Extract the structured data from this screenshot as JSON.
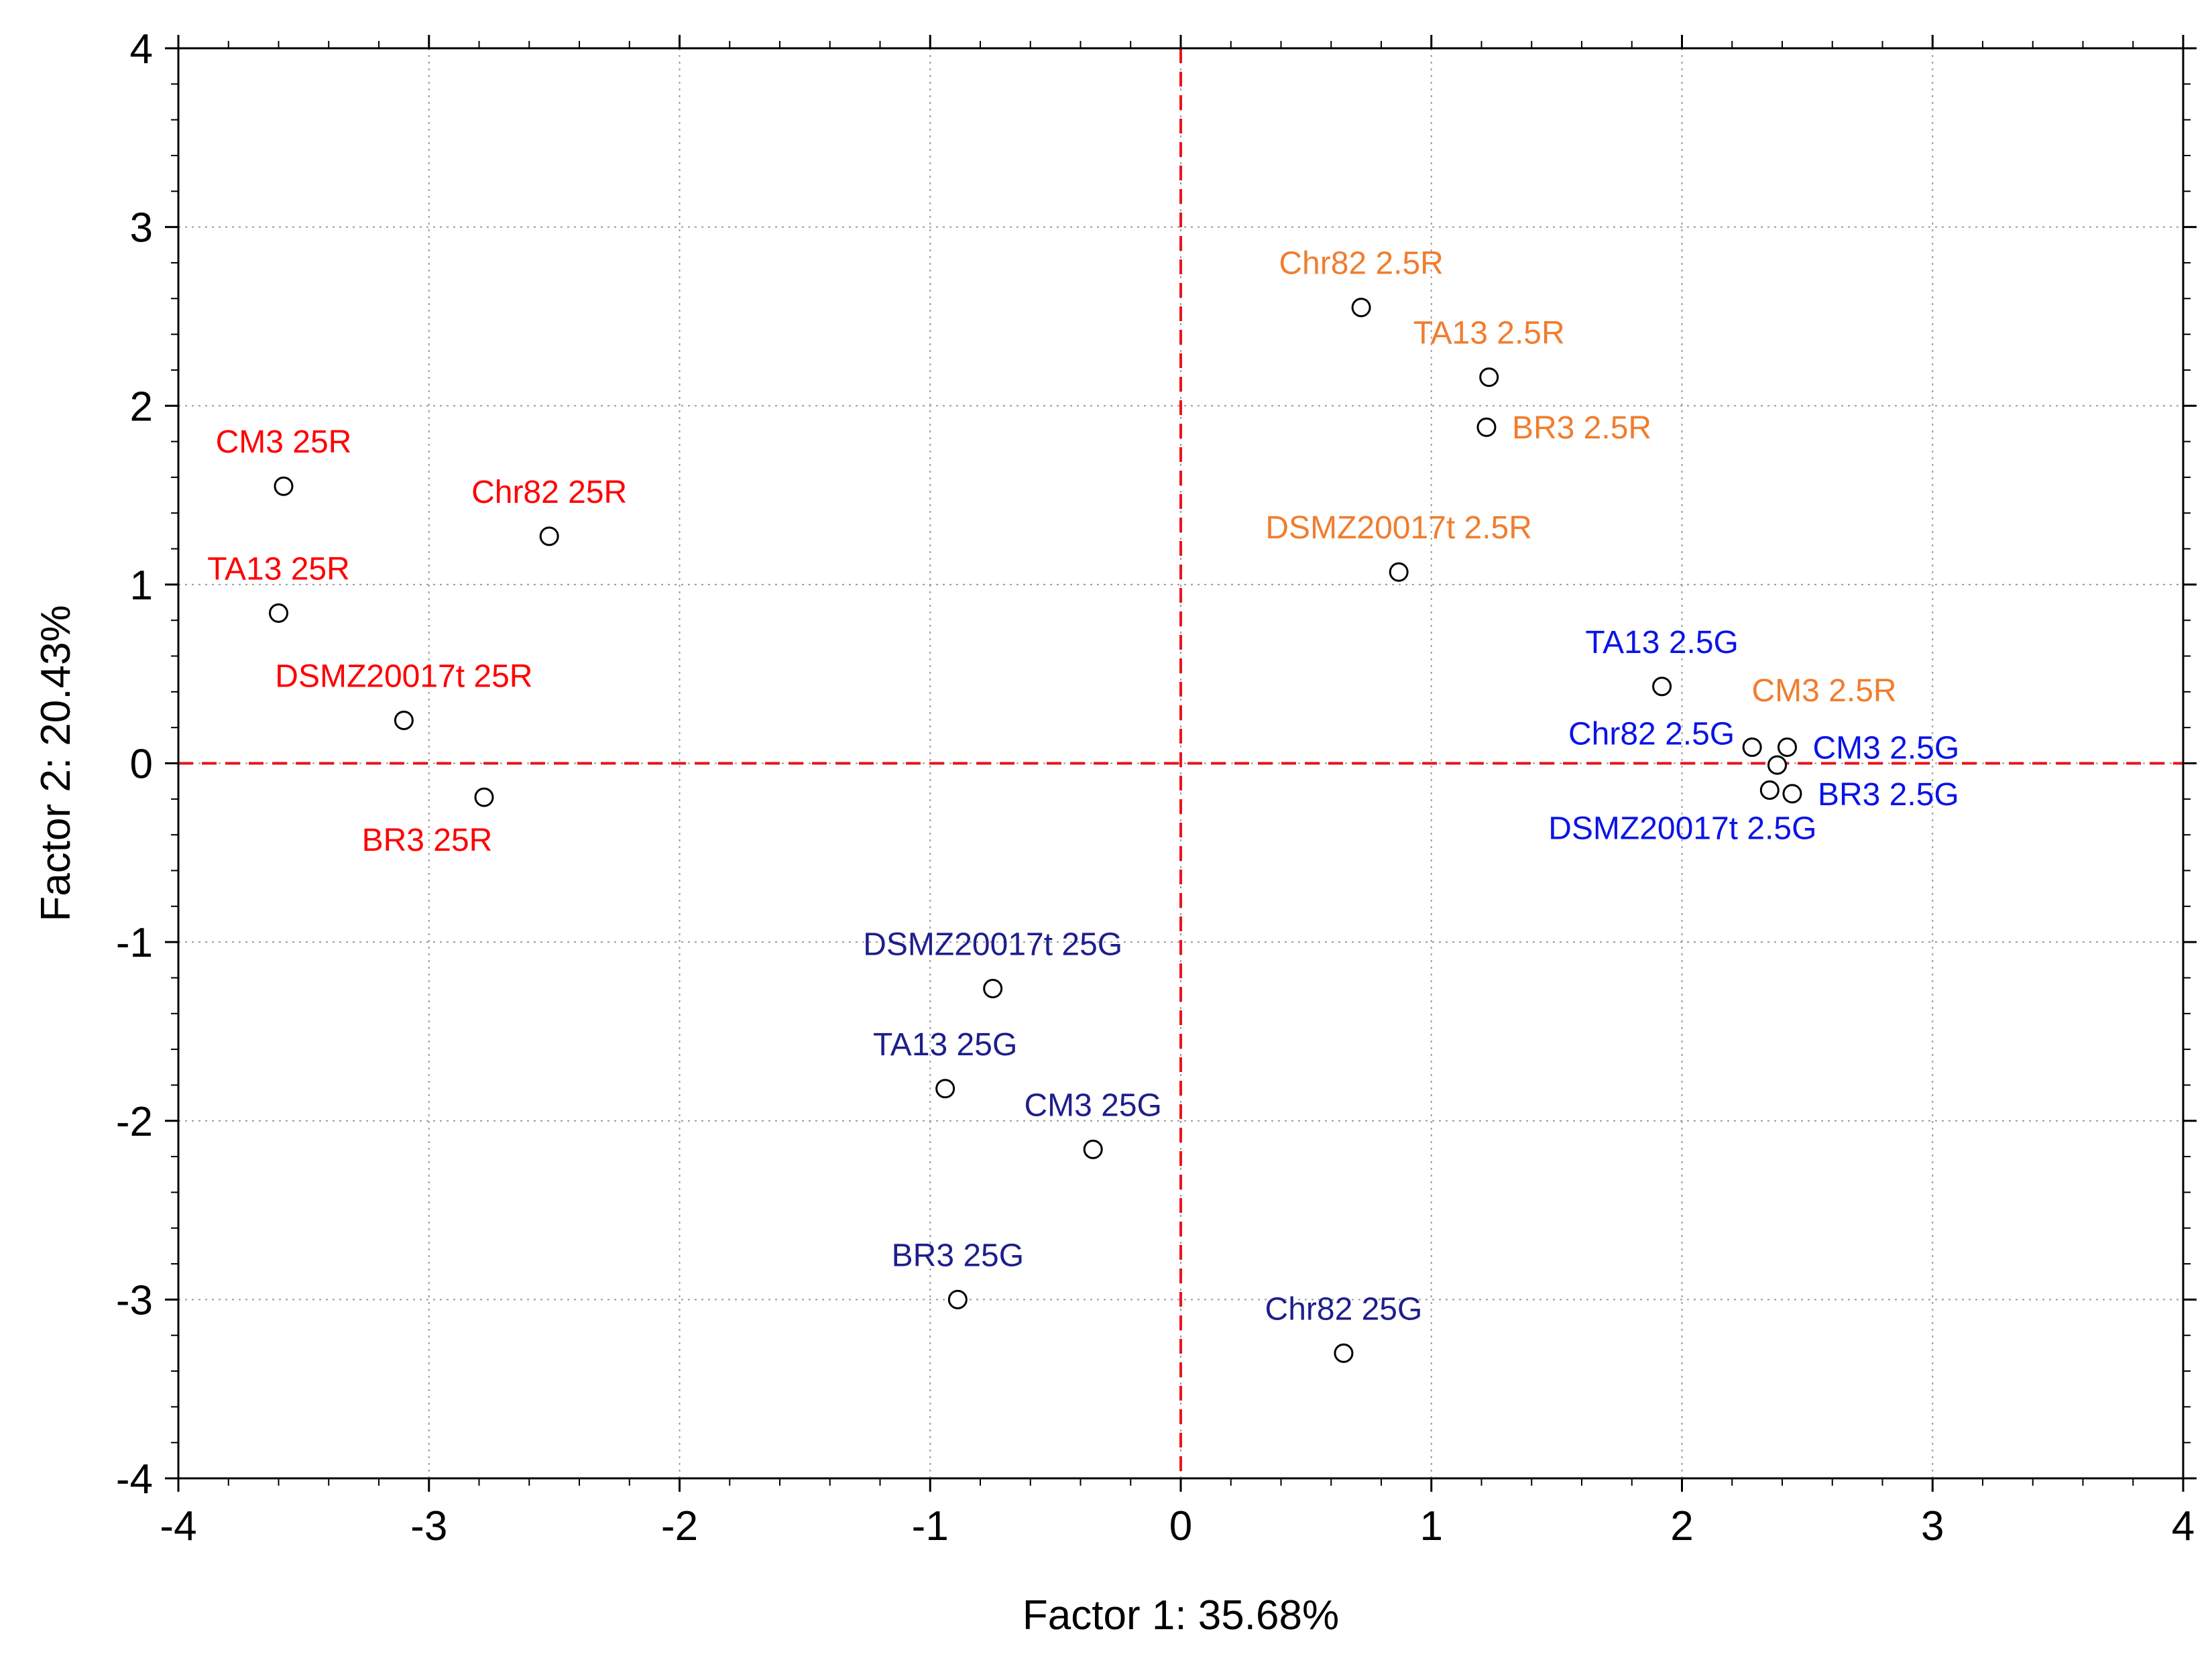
{
  "chart_data": {
    "type": "scatter",
    "title": "",
    "xlabel": "Factor 1: 35.68%",
    "ylabel": "Factor 2: 20.43%",
    "xlim": [
      -4,
      4
    ],
    "ylim": [
      -4,
      4
    ],
    "xticks": [
      "-4",
      "-3",
      "-2",
      "-1",
      "0",
      "1",
      "2",
      "3",
      "4"
    ],
    "yticks": [
      "4",
      "3",
      "2",
      "1",
      "0",
      "-1",
      "-2",
      "-3",
      "-4"
    ],
    "grid": true,
    "reference_lines": {
      "x": 0,
      "y": 0,
      "color": "#e8141c",
      "style": "dashed"
    },
    "marker": "open-circle",
    "colors": {
      "red": "#ff0000",
      "orange": "#f07d2e",
      "blue": "#0a14e6",
      "navy": "#1e1e8c"
    },
    "points": [
      {
        "label": "CM3 25R",
        "x": -3.58,
        "y": 1.55,
        "color": "red",
        "label_pos": "above"
      },
      {
        "label": "Chr82 25R",
        "x": -2.52,
        "y": 1.27,
        "color": "red",
        "label_pos": "above"
      },
      {
        "label": "TA13 25R",
        "x": -3.6,
        "y": 0.84,
        "color": "red",
        "label_pos": "above"
      },
      {
        "label": "DSMZ20017t 25R",
        "x": -3.1,
        "y": 0.24,
        "color": "red",
        "label_pos": "above"
      },
      {
        "label": "BR3 25R",
        "x": -2.78,
        "y": -0.19,
        "color": "red",
        "label_pos": "below"
      },
      {
        "label": "Chr82 2.5R",
        "x": 0.72,
        "y": 2.55,
        "color": "orange",
        "label_pos": "above"
      },
      {
        "label": "TA13 2.5R",
        "x": 1.23,
        "y": 2.16,
        "color": "orange",
        "label_pos": "above"
      },
      {
        "label": "BR3 2.5R",
        "x": 1.22,
        "y": 1.88,
        "color": "orange",
        "label_pos": "right"
      },
      {
        "label": "DSMZ20017t 2.5R",
        "x": 0.87,
        "y": 1.07,
        "color": "orange",
        "label_pos": "above"
      },
      {
        "label": "CM3 2.5R",
        "x": 2.38,
        "y": -0.01,
        "color": "orange",
        "label_pos": "above-high"
      },
      {
        "label": "TA13 2.5G",
        "x": 1.92,
        "y": 0.43,
        "color": "blue",
        "label_pos": "above"
      },
      {
        "label": "Chr82 2.5G",
        "x": 2.28,
        "y": 0.09,
        "color": "blue",
        "label_pos": "left"
      },
      {
        "label": "CM3 2.5G",
        "x": 2.42,
        "y": 0.09,
        "color": "blue",
        "label_pos": "right"
      },
      {
        "label": "BR3 2.5G",
        "x": 2.44,
        "y": -0.17,
        "color": "blue",
        "label_pos": "right"
      },
      {
        "label": "DSMZ20017t 2.5G",
        "x": 2.35,
        "y": -0.15,
        "color": "blue",
        "label_pos": "below"
      },
      {
        "label": "DSMZ20017t 25G",
        "x": -0.75,
        "y": -1.26,
        "color": "navy",
        "label_pos": "above"
      },
      {
        "label": "TA13 25G",
        "x": -0.94,
        "y": -1.82,
        "color": "navy",
        "label_pos": "above"
      },
      {
        "label": "CM3 25G",
        "x": -0.35,
        "y": -2.16,
        "color": "navy",
        "label_pos": "above"
      },
      {
        "label": "BR3 25G",
        "x": -0.89,
        "y": -3.0,
        "color": "navy",
        "label_pos": "above"
      },
      {
        "label": "Chr82 25G",
        "x": 0.65,
        "y": -3.3,
        "color": "navy",
        "label_pos": "above"
      }
    ]
  }
}
